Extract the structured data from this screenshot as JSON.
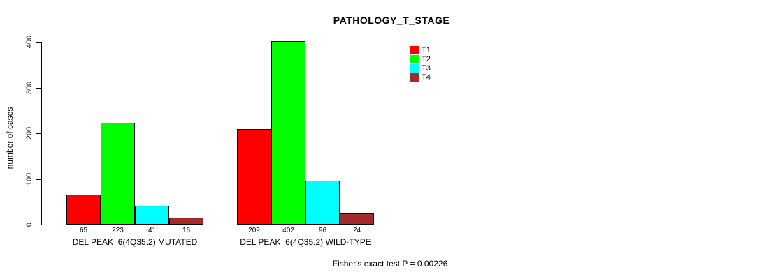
{
  "chart_data": {
    "type": "bar",
    "title": "PATHOLOGY_T_STAGE",
    "xlabel": "",
    "ylabel": "number of cases",
    "categories": [
      "DEL PEAK  6(4Q35.2) MUTATED",
      "DEL PEAK  6(4Q35.2) WILD-TYPE"
    ],
    "series": [
      {
        "name": "T1",
        "color": "#FF0000",
        "values": [
          65,
          209
        ]
      },
      {
        "name": "T2",
        "color": "#00FF00",
        "values": [
          223,
          402
        ]
      },
      {
        "name": "T3",
        "color": "#00FFFF",
        "values": [
          41,
          96
        ]
      },
      {
        "name": "T4",
        "color": "#A52A2A",
        "values": [
          16,
          24
        ]
      }
    ],
    "bar_value_labels": [
      [
        "65",
        "223",
        "41",
        "16"
      ],
      [
        "209",
        "402",
        "96",
        "24"
      ]
    ],
    "ylim": [
      0,
      400
    ],
    "yticks": [
      "0",
      "100",
      "200",
      "300",
      "400"
    ],
    "grid": false,
    "legend_position": "top-right",
    "annotation": "Fisher's exact test P = 0.00226"
  }
}
